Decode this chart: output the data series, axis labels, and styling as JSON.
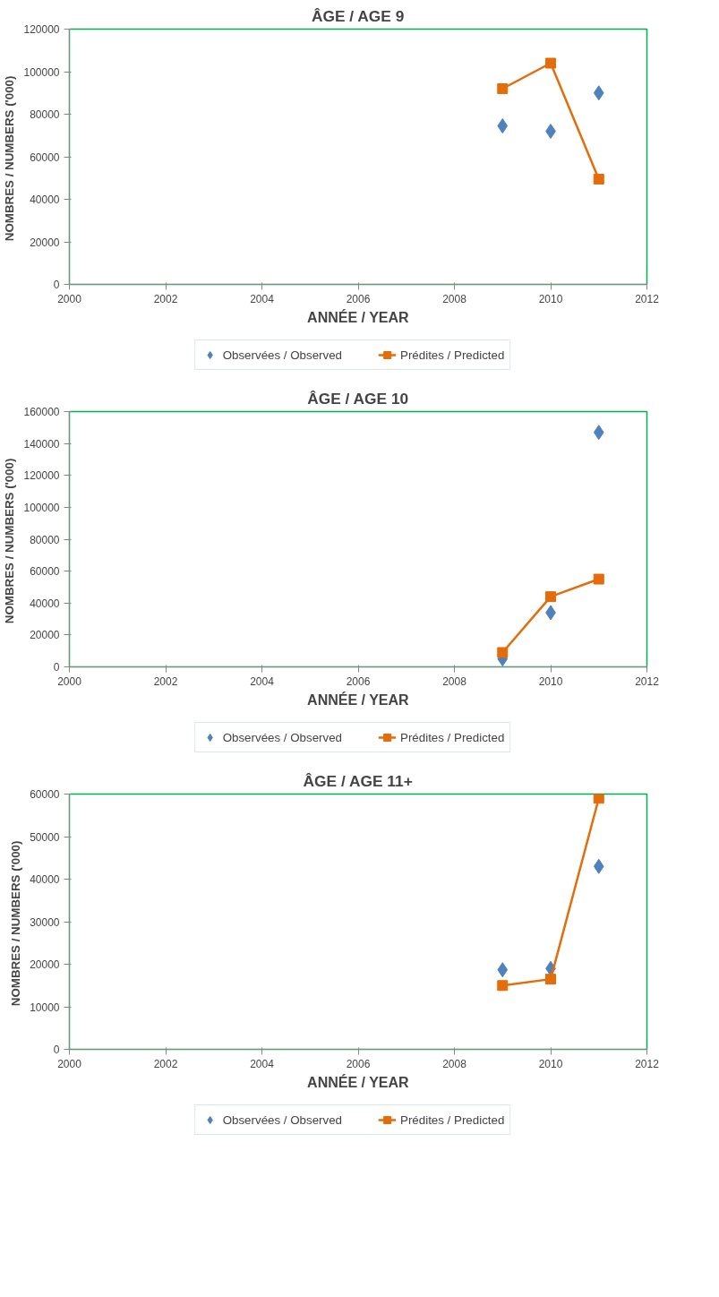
{
  "chart_data": [
    {
      "type": "scatter",
      "title": "ÂGE / AGE 9",
      "xlabel": "ANNÉE / YEAR",
      "ylabel": "NOMBRES  / NUMBERS ('000)",
      "xlim": [
        2000,
        2012
      ],
      "xticks": [
        2000,
        2002,
        2004,
        2006,
        2008,
        2010,
        2012
      ],
      "ylim": [
        0,
        120000
      ],
      "yticks": [
        0,
        20000,
        40000,
        60000,
        80000,
        100000,
        120000
      ],
      "grid": false,
      "legend": "bottom",
      "series": [
        {
          "name": "Observées / Observed",
          "marker": "diamond",
          "color": "#4f81bd",
          "x": [
            2009,
            2010,
            2011
          ],
          "values": [
            74500,
            72000,
            90000
          ]
        },
        {
          "name": "Prédites / Predicted",
          "type": "line",
          "marker": "square",
          "color": "#e46c0a",
          "x": [
            2009,
            2010,
            2011
          ],
          "values": [
            92000,
            104000,
            49500
          ]
        }
      ]
    },
    {
      "type": "scatter",
      "title": "ÂGE / AGE 10",
      "xlabel": "ANNÉE / YEAR",
      "ylabel": "NOMBRES  / NUMBERS ('000)",
      "xlim": [
        2000,
        2012
      ],
      "xticks": [
        2000,
        2002,
        2004,
        2006,
        2008,
        2010,
        2012
      ],
      "ylim": [
        0,
        160000
      ],
      "yticks": [
        0,
        20000,
        40000,
        60000,
        80000,
        100000,
        120000,
        140000,
        160000
      ],
      "grid": false,
      "legend": "bottom",
      "series": [
        {
          "name": "Observées / Observed",
          "marker": "diamond",
          "color": "#4f81bd",
          "x": [
            2009,
            2010,
            2011
          ],
          "values": [
            5000,
            34000,
            147000
          ]
        },
        {
          "name": "Prédites / Predicted",
          "type": "line",
          "marker": "square",
          "color": "#e46c0a",
          "x": [
            2009,
            2010,
            2011
          ],
          "values": [
            9000,
            44000,
            55000
          ]
        }
      ]
    },
    {
      "type": "scatter",
      "title": "ÂGE / AGE 11+",
      "xlabel": "ANNÉE / YEAR",
      "ylabel": "NOMBRES  / NUMBERS ('000)",
      "xlim": [
        2000,
        2012
      ],
      "xticks": [
        2000,
        2002,
        2004,
        2006,
        2008,
        2010,
        2012
      ],
      "ylim": [
        0,
        60000
      ],
      "yticks": [
        0,
        10000,
        20000,
        30000,
        40000,
        50000,
        60000
      ],
      "grid": false,
      "legend": "bottom",
      "series": [
        {
          "name": "Observées / Observed",
          "marker": "diamond",
          "color": "#4f81bd",
          "x": [
            2009,
            2010,
            2011
          ],
          "values": [
            18700,
            19000,
            43000
          ]
        },
        {
          "name": "Prédites / Predicted",
          "type": "line",
          "marker": "square",
          "color": "#e46c0a",
          "x": [
            2009,
            2010,
            2011
          ],
          "values": [
            15000,
            16500,
            59000
          ]
        }
      ]
    }
  ]
}
